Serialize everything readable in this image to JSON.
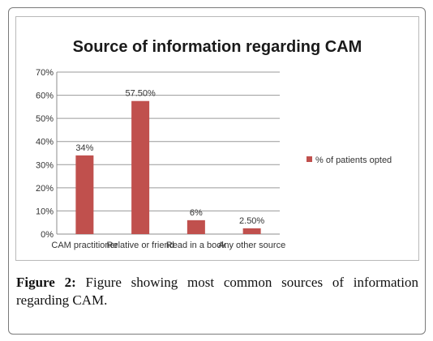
{
  "chart_data": {
    "type": "bar",
    "title": "Source of information regarding CAM",
    "categories": [
      "CAM practitioner",
      "Relative or friend",
      "Read in a book",
      "Any other source"
    ],
    "series": [
      {
        "name": "% of patients opted",
        "values": [
          34,
          57.5,
          6,
          2.5
        ],
        "color": "#c0504d"
      }
    ],
    "data_labels": [
      "34%",
      "57.50%",
      "6%",
      "2.50%"
    ],
    "y_ticks": [
      "0%",
      "10%",
      "20%",
      "30%",
      "40%",
      "50%",
      "60%",
      "70%"
    ],
    "ylim": [
      0,
      70
    ],
    "grid": true,
    "legend": "right"
  },
  "caption": {
    "label": "Figure 2:",
    "text": " Figure showing most common sources of information regarding CAM."
  }
}
